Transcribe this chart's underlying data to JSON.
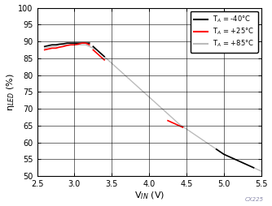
{
  "title": "",
  "xlabel": "V$_{IN}$ (V)",
  "ylabel": "η$_{LED}$ (%)",
  "xlim": [
    2.5,
    5.5
  ],
  "ylim": [
    50,
    100
  ],
  "xticks": [
    2.5,
    3.0,
    3.5,
    4.0,
    4.5,
    5.0,
    5.5
  ],
  "yticks": [
    50,
    55,
    60,
    65,
    70,
    75,
    80,
    85,
    90,
    95,
    100
  ],
  "legend_labels": [
    "T$_A$ = -40°C",
    "T$_A$ = +25°C",
    "T$_A$ = +85°C"
  ],
  "legend_colors": [
    "#000000",
    "#ff0000",
    "#bbbbbb"
  ],
  "series": {
    "gray": {
      "segments": [
        {
          "x": [
            2.6,
            2.7,
            2.75,
            2.8,
            2.85,
            2.9,
            2.95,
            3.0,
            3.05,
            3.1,
            3.15,
            3.2,
            3.3,
            3.4,
            3.5,
            3.6,
            3.7,
            3.8,
            3.9,
            4.0,
            4.1,
            4.2,
            4.3,
            4.4,
            4.5,
            4.6,
            4.7,
            4.8,
            4.9,
            5.0,
            5.1,
            5.2,
            5.3,
            5.4,
            5.5
          ],
          "y": [
            88.0,
            88.5,
            88.5,
            89.0,
            89.0,
            89.0,
            89.0,
            89.0,
            89.0,
            89.0,
            89.0,
            88.5,
            87.5,
            85.5,
            83.5,
            81.5,
            79.5,
            77.5,
            75.5,
            73.5,
            71.5,
            69.5,
            67.5,
            65.5,
            64.0,
            62.5,
            61.0,
            59.5,
            58.0,
            56.5,
            55.5,
            54.5,
            53.5,
            52.5,
            51.5
          ]
        }
      ],
      "color": "#bbbbbb",
      "lw": 1.0
    },
    "black": {
      "segments": [
        {
          "x": [
            2.6,
            2.7,
            2.75,
            2.8,
            2.85,
            2.9,
            2.95,
            3.0,
            3.05,
            3.1,
            3.15,
            3.2
          ],
          "y": [
            88.5,
            89.0,
            89.0,
            89.2,
            89.3,
            89.5,
            89.5,
            89.5,
            89.5,
            89.5,
            89.5,
            89.5
          ]
        },
        {
          "x": [
            3.25,
            3.3,
            3.35,
            3.4
          ],
          "y": [
            88.5,
            87.5,
            86.5,
            85.5
          ]
        },
        {
          "x": [
            4.9,
            5.0,
            5.1,
            5.2,
            5.3,
            5.4
          ],
          "y": [
            58.0,
            56.5,
            55.5,
            54.5,
            53.5,
            52.5
          ]
        }
      ],
      "color": "#000000",
      "lw": 1.2
    },
    "red": {
      "segments": [
        {
          "x": [
            2.6,
            2.7,
            2.75,
            2.8,
            2.85,
            2.9,
            2.95,
            3.0,
            3.05,
            3.1,
            3.15,
            3.2
          ],
          "y": [
            87.5,
            88.0,
            88.0,
            88.3,
            88.5,
            88.8,
            89.0,
            89.0,
            89.2,
            89.5,
            89.5,
            89.0
          ]
        },
        {
          "x": [
            3.25,
            3.3,
            3.35,
            3.4
          ],
          "y": [
            87.5,
            86.5,
            85.5,
            84.5
          ]
        },
        {
          "x": [
            4.25,
            4.3,
            4.35,
            4.4,
            4.45
          ],
          "y": [
            66.5,
            66.0,
            65.5,
            65.0,
            64.5
          ]
        }
      ],
      "color": "#ff0000",
      "lw": 1.2
    }
  },
  "watermark": "CX225",
  "bg_color": "#ffffff",
  "grid_color": "#000000"
}
